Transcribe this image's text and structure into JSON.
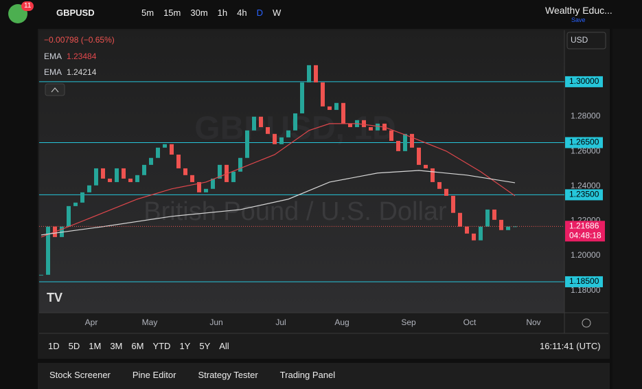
{
  "toolbar": {
    "badge": "11",
    "symbol": "GBPUSD",
    "timeframes": [
      "5m",
      "15m",
      "30m",
      "1h",
      "4h",
      "D",
      "W"
    ],
    "layout_name": "Wealthy Educ...",
    "save": "Save"
  },
  "currency": "USD",
  "chart_data": {
    "type": "candlestick",
    "watermark": [
      "GBPUSD, 1D",
      "British Pound / U.S. Dollar"
    ],
    "change": "−0.00798 (−0.65%)",
    "up_color": "#26a69a",
    "down_color": "#ef5350",
    "values": [
      1.189,
      1.2167,
      1.2107,
      1.2167,
      1.2285,
      1.2305,
      1.2364,
      1.2404,
      1.2502,
      1.2443,
      1.2423,
      1.2502,
      1.2443,
      1.2423,
      1.2463,
      1.2522,
      1.2562,
      1.2621,
      1.2641,
      1.2581,
      1.2502,
      1.2463,
      1.2423,
      1.2364,
      1.2384,
      1.2443,
      1.2522,
      1.2423,
      1.2483,
      1.2562,
      1.272,
      1.2799,
      1.2739,
      1.27,
      1.2641,
      1.268,
      1.272,
      1.2818,
      1.2996,
      1.3095,
      1.2996,
      1.2858,
      1.2838,
      1.2878,
      1.2759,
      1.2739,
      1.2779,
      1.2739,
      1.272,
      1.2759,
      1.272,
      1.266,
      1.2601,
      1.27,
      1.2621,
      1.2522,
      1.2502,
      1.2423,
      1.2384,
      1.2344,
      1.2246,
      1.2167,
      1.2127,
      1.2088,
      1.2167,
      1.2265,
      1.2206,
      1.2147,
      1.2167,
      1.21686
    ],
    "series": [
      {
        "name": "EMA",
        "color": "#e0474c",
        "last_value": 1.23484,
        "x": [
          0,
          4,
          9,
          14,
          19,
          24,
          29,
          34,
          39,
          42,
          46,
          50,
          54,
          59,
          64,
          69
        ],
        "values": [
          1.2107,
          1.2167,
          1.2246,
          1.2325,
          1.2384,
          1.2423,
          1.2502,
          1.2581,
          1.272,
          1.2759,
          1.2759,
          1.2739,
          1.268,
          1.2601,
          1.2483,
          1.2344
        ]
      },
      {
        "name": "EMA",
        "color": "#d8d8d8",
        "last_value": 1.24214,
        "x": [
          0,
          9,
          19,
          29,
          36,
          42,
          49,
          55,
          62,
          69
        ],
        "values": [
          1.2119,
          1.2167,
          1.2226,
          1.2265,
          1.2325,
          1.2423,
          1.2475,
          1.249,
          1.2463,
          1.2419
        ]
      }
    ],
    "levels": [
      {
        "value": 1.3,
        "label": "1.30000"
      },
      {
        "value": 1.265,
        "label": "1.26500"
      },
      {
        "value": 1.235,
        "label": "1.23500"
      },
      {
        "value": 1.185,
        "label": "1.18500"
      }
    ],
    "level_color": "#26c6da",
    "current_price": {
      "value": 1.21686,
      "label": "1.21686"
    },
    "countdown": "04:48:18",
    "xlim": [
      -0.3,
      76.2
    ],
    "ylim": [
      1.1672,
      1.3296
    ],
    "yticks": [
      {
        "value": 1.28,
        "label": "1.28000"
      },
      {
        "value": 1.26,
        "label": "1.26000"
      },
      {
        "value": 1.24,
        "label": "1.24000"
      },
      {
        "value": 1.22,
        "label": "1.22000"
      },
      {
        "value": 1.2,
        "label": "1.20000"
      },
      {
        "value": 1.18,
        "label": "1.18000"
      }
    ],
    "xticks": [
      {
        "value": 7.3,
        "label": "Apr"
      },
      {
        "value": 15.8,
        "label": "May"
      },
      {
        "value": 25.5,
        "label": "Jun"
      },
      {
        "value": 34.9,
        "label": "Jul"
      },
      {
        "value": 43.8,
        "label": "Aug"
      },
      {
        "value": 53.5,
        "label": "Sep"
      },
      {
        "value": 62.4,
        "label": "Oct"
      },
      {
        "value": 71.7,
        "label": "Nov"
      }
    ]
  },
  "range_bar": {
    "ranges": [
      "1D",
      "5D",
      "1M",
      "3M",
      "6M",
      "YTD",
      "1Y",
      "5Y",
      "All"
    ],
    "clock": "16:11:41 (UTC)"
  },
  "bottom_panel": {
    "tabs": [
      "Stock Screener",
      "Pine Editor",
      "Strategy Tester",
      "Trading Panel"
    ]
  }
}
